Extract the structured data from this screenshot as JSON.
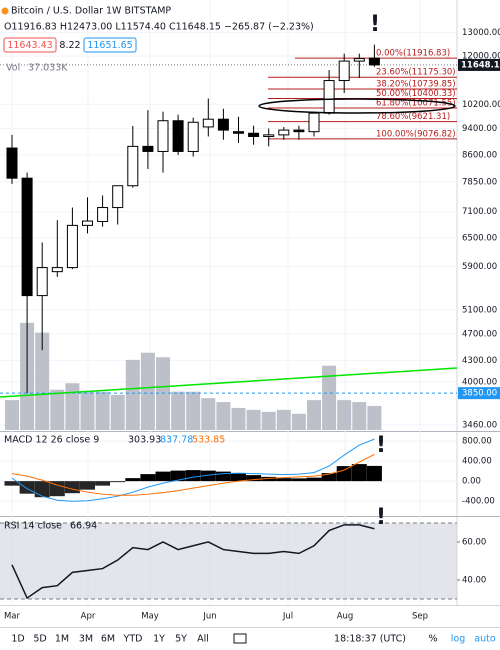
{
  "header": {
    "title": "Bitcoin / U.S. Dollar  1W  BITSTAMP",
    "ohlc": "O11916.83 H12473.00 L11574.40 C11648.15 −265.87 (−2.23%)",
    "bid": "11643.43",
    "spread": "8.22",
    "ask": "11651.65",
    "volume_label": "Vol"
  },
  "price_chart": {
    "type": "candlestick",
    "log_scale": true,
    "grid": true,
    "ylim": [
      3400,
      14500
    ],
    "yticks": [
      {
        "value": 13000,
        "label": "13000.00"
      },
      {
        "value": 12000,
        "label": "12000.00"
      },
      {
        "value": 10200,
        "label": "10200.00"
      },
      {
        "value": 9400,
        "label": "9400.00"
      },
      {
        "value": 8600,
        "label": "8600.00"
      },
      {
        "value": 7850,
        "label": "7850.00"
      },
      {
        "value": 7100,
        "label": "7100.00"
      },
      {
        "value": 6500,
        "label": "6500.00"
      },
      {
        "value": 5900,
        "label": "5900.00"
      },
      {
        "value": 5100,
        "label": "5100.00"
      },
      {
        "value": 4700,
        "label": "4700.00"
      },
      {
        "value": 4300,
        "label": "4300.00"
      },
      {
        "value": 4000,
        "label": "4000.00"
      },
      {
        "value": 3460,
        "label": "3460.00"
      }
    ],
    "x_labels": [
      "Mar",
      "Apr",
      "May",
      "Jun",
      "Jul",
      "Aug",
      "Sep"
    ],
    "open": [
      8800,
      7950,
      5350,
      5800,
      5880,
      6780,
      6870,
      7200,
      7750,
      8850,
      8700,
      9650,
      8700,
      9450,
      9700,
      9300,
      9250,
      9150,
      9200,
      9350,
      9300,
      9900,
      11050,
      11800,
      11916.83
    ],
    "high": [
      9200,
      8100,
      6400,
      6900,
      7200,
      7450,
      7500,
      7750,
      9480,
      10000,
      9950,
      9850,
      9750,
      10400,
      10050,
      9780,
      9490,
      9400,
      9450,
      9490,
      9950,
      11450,
      12100,
      12100,
      12473.0
    ],
    "low": [
      7800,
      3850,
      4450,
      5700,
      5850,
      6600,
      6750,
      6800,
      7700,
      8200,
      8100,
      8600,
      8550,
      9150,
      9050,
      8950,
      8900,
      8850,
      9050,
      9050,
      9150,
      9850,
      10600,
      11150,
      11574.4
    ],
    "close": [
      7950,
      5350,
      5880,
      5880,
      6780,
      6880,
      7200,
      7750,
      8850,
      8700,
      9650,
      8700,
      9600,
      9700,
      9350,
      9250,
      9150,
      9200,
      9350,
      9300,
      9900,
      11050,
      11800,
      11900,
      11648.15
    ],
    "up_color": "#ffffff",
    "down_color": "#000000",
    "volume": {
      "color": "#b2b5be",
      "values": [
        46,
        165,
        150,
        62,
        72,
        59,
        59,
        54,
        108,
        119,
        112,
        59,
        59,
        49,
        43,
        34,
        31,
        28,
        31,
        25,
        46,
        99,
        46,
        43,
        37.033
      ],
      "last_label": "37.033K"
    },
    "fib_color": "#b71c1c",
    "fib_levels": [
      {
        "value": 11916.83,
        "label": "0.00%(11916.83)"
      },
      {
        "value": 11175.3,
        "label": "23.60%(11175.30)"
      },
      {
        "value": 10739.85,
        "label": "38.20%(10739.85)"
      },
      {
        "value": 10400.33,
        "label": "50.00%(10400.33)"
      },
      {
        "value": 10071.55,
        "label": "61.80%(10071.55)"
      },
      {
        "value": 9621.31,
        "label": "78.60%(9621.31)"
      },
      {
        "value": 9076.82,
        "label": "100.00%(9076.82)"
      }
    ],
    "support": {
      "value": 3850,
      "label": "3850.00"
    }
  },
  "macd": {
    "type": "line",
    "title": "MACD 12 26 close 9",
    "ylim": [
      -675,
      960
    ],
    "yticks": [
      {
        "value": 800,
        "label": "800.00"
      },
      {
        "value": 400,
        "label": "400.00"
      },
      {
        "value": 0,
        "label": "0.00"
      },
      {
        "value": -400,
        "label": "-400.00"
      }
    ],
    "series": [
      {
        "color": "#000000",
        "values": [
          -90,
          -250,
          -320,
          -300,
          -240,
          -170,
          -90,
          -20,
          60,
          140,
          190,
          210,
          220,
          210,
          190,
          160,
          120,
          85,
          60,
          55,
          70,
          160,
          300,
          340,
          303.93
        ]
      },
      {
        "color": "#2196f3",
        "values": [
          60,
          -150,
          -300,
          -380,
          -400,
          -390,
          -350,
          -300,
          -220,
          -120,
          -40,
          20,
          80,
          120,
          150,
          160,
          150,
          140,
          130,
          140,
          170,
          300,
          520,
          720,
          837.78
        ]
      },
      {
        "color": "#ff6d00",
        "values": [
          150,
          100,
          20,
          -80,
          -160,
          -220,
          -260,
          -280,
          -280,
          -260,
          -230,
          -190,
          -140,
          -90,
          -40,
          0,
          30,
          55,
          70,
          85,
          100,
          140,
          220,
          380,
          533.85
        ]
      }
    ]
  },
  "rsi": {
    "type": "line",
    "title": "RSI 14 close",
    "ylim": [
      27.9,
      72.6
    ],
    "band": [
      30,
      70
    ],
    "yticks": [
      {
        "value": 60,
        "label": "60.00"
      },
      {
        "value": 40,
        "label": "40.00"
      }
    ],
    "color": "#131722",
    "values": [
      48,
      30.5,
      36,
      37,
      44,
      45,
      46,
      50.5,
      57,
      56,
      60,
      56,
      58,
      60,
      56,
      55,
      54,
      54,
      55,
      54,
      58,
      66,
      69,
      69,
      66.94
    ]
  },
  "annotations": [
    "!",
    "!",
    "!"
  ],
  "toolbar": {
    "ranges": [
      "1D",
      "5D",
      "1M",
      "3M",
      "6M",
      "YTD",
      "1Y",
      "5Y",
      "All"
    ],
    "clock": "18:18:37 (UTC)",
    "percent": "%",
    "log": "log",
    "auto": "auto"
  }
}
